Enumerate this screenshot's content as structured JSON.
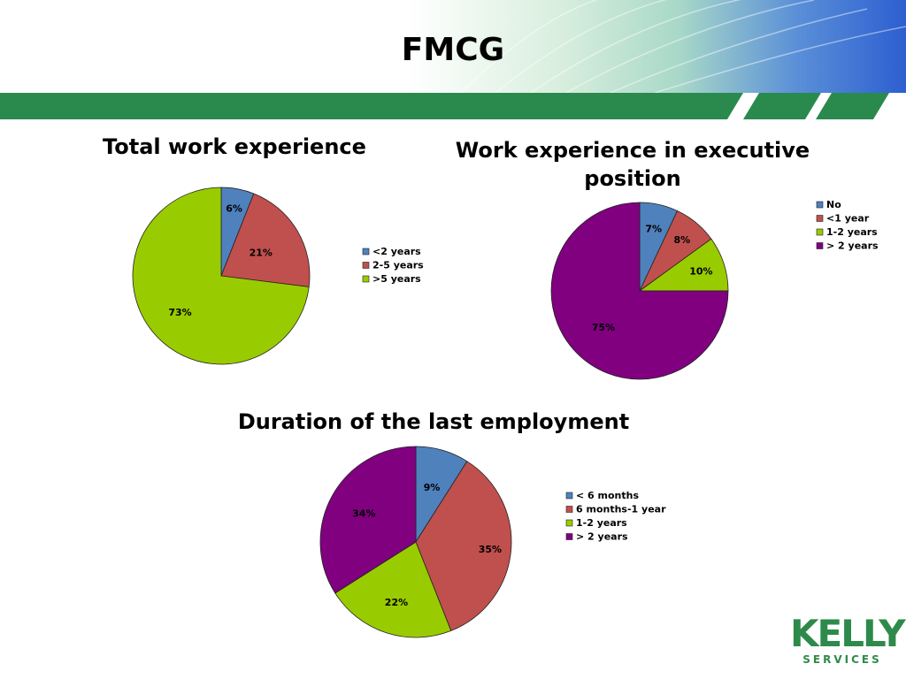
{
  "slide": {
    "title": "FMCG",
    "logo": {
      "brand": "KELLY",
      "sub": "SERVICES",
      "color": "#2e8a4a"
    },
    "band_color": "#2a8a4e"
  },
  "chart_data": [
    {
      "type": "pie",
      "title": "Total work experience",
      "categories": [
        "<2 years",
        "2-5 years",
        ">5 years"
      ],
      "values": [
        6,
        21,
        73
      ],
      "labels": [
        "6%",
        "21%",
        "73%"
      ],
      "colors": [
        "#4f81bd",
        "#c0504d",
        "#99cc00"
      ],
      "legend": "right"
    },
    {
      "type": "pie",
      "title": "Work experience in executive position",
      "categories": [
        "No",
        "<1 year",
        "1-2 years",
        "> 2 years"
      ],
      "values": [
        7,
        8,
        10,
        75
      ],
      "labels": [
        "7%",
        "8%",
        "10%",
        "75%"
      ],
      "colors": [
        "#4f81bd",
        "#c0504d",
        "#99cc00",
        "#800080"
      ],
      "legend": "top-right"
    },
    {
      "type": "pie",
      "title": "Duration of the last employment",
      "categories": [
        "< 6 months",
        "6 months-1 year",
        "1-2 years",
        "> 2 years"
      ],
      "values": [
        9,
        35,
        22,
        34
      ],
      "labels": [
        "9%",
        "35%",
        "22%",
        "34%"
      ],
      "colors": [
        "#4f81bd",
        "#c0504d",
        "#99cc00",
        "#800080"
      ],
      "legend": "right"
    }
  ]
}
